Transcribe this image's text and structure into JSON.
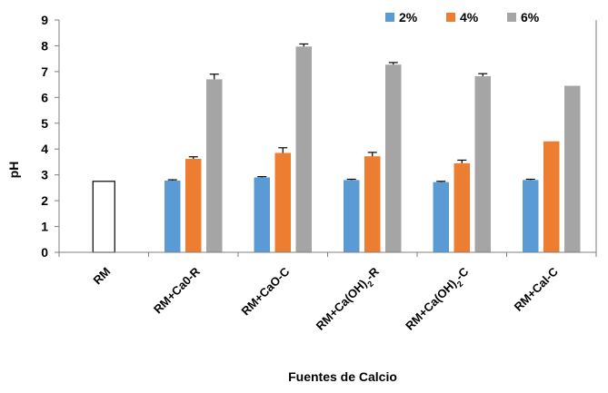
{
  "chart_data": {
    "type": "bar",
    "title": "",
    "xlabel": "Fuentes de Calcio",
    "ylabel": "pH",
    "ylim": [
      0,
      9
    ],
    "yticks": [
      "0",
      "1",
      "2",
      "3",
      "4",
      "5",
      "6",
      "7",
      "8",
      "9"
    ],
    "grid": false,
    "legend_position": "top-right",
    "categories": [
      {
        "label": "RM",
        "base": "RM",
        "sub": "",
        "tail": ""
      },
      {
        "label": "RM+Ca0-R",
        "base": "RM+Ca0-R",
        "sub": "",
        "tail": ""
      },
      {
        "label": "RM+CaO-C",
        "base": "RM+CaO-C",
        "sub": "",
        "tail": ""
      },
      {
        "label": "RM+Ca(OH)2-R",
        "base": "RM+Ca(OH)",
        "sub": "2",
        "tail": "-R"
      },
      {
        "label": "RM+Ca(OH)2-C",
        "base": "RM+Ca(OH)",
        "sub": "2",
        "tail": "-C"
      },
      {
        "label": "RM+Cal-C",
        "base": "RM+Cal-C",
        "sub": "",
        "tail": ""
      }
    ],
    "control": {
      "category": "RM",
      "value": 2.75,
      "color": "#ffffff",
      "stroke": "#000000"
    },
    "series": [
      {
        "name": "2%",
        "color": "#5b9bd5",
        "values": [
          null,
          2.78,
          2.9,
          2.8,
          2.72,
          2.8
        ],
        "errors": [
          null,
          0.03,
          0.03,
          0.03,
          0.03,
          0.03
        ]
      },
      {
        "name": "4%",
        "color": "#ed7d31",
        "values": [
          null,
          3.62,
          3.85,
          3.72,
          3.45,
          4.3
        ],
        "errors": [
          null,
          0.08,
          0.2,
          0.15,
          0.12,
          0
        ]
      },
      {
        "name": "6%",
        "color": "#a5a5a5",
        "values": [
          null,
          6.7,
          7.97,
          7.27,
          6.82,
          6.45
        ],
        "errors": [
          null,
          0.2,
          0.1,
          0.08,
          0.1,
          0
        ]
      }
    ]
  }
}
